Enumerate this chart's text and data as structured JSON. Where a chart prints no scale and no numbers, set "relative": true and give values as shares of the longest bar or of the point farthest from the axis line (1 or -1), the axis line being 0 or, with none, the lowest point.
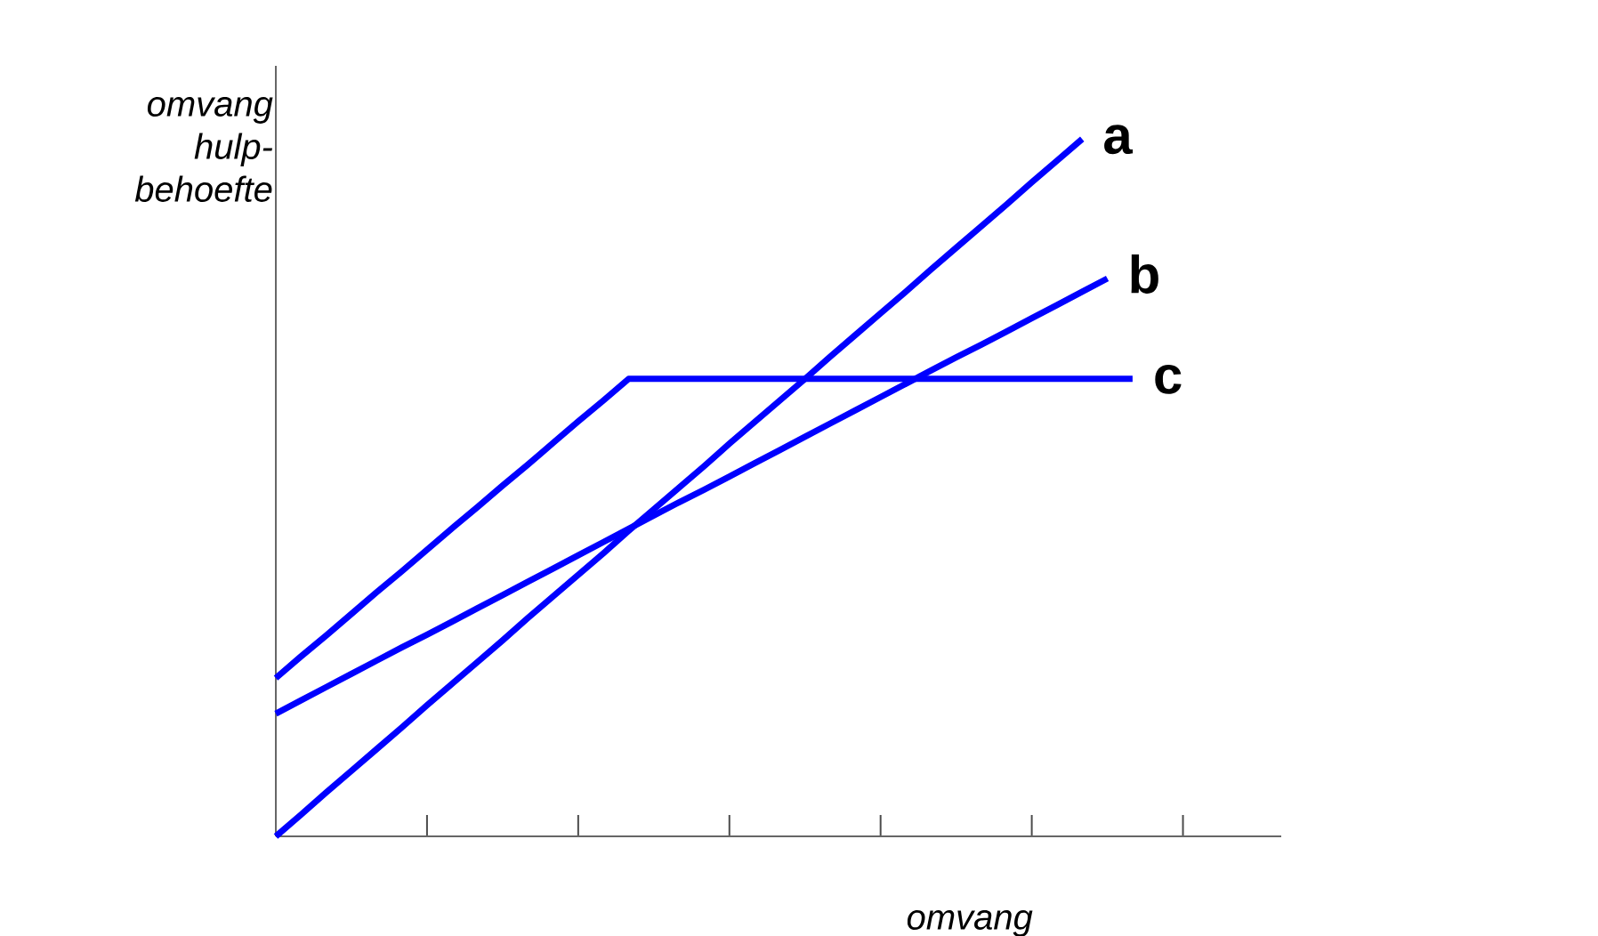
{
  "chart_data": {
    "type": "line",
    "relative": true,
    "xlabel": "omvang",
    "ylabel": "omvang hulp-behoefte",
    "categories": [
      null,
      null,
      null,
      null,
      null,
      null,
      null,
      null,
      null,
      null,
      null,
      null,
      null,
      null,
      null,
      null,
      null,
      null,
      null,
      null,
      null,
      null,
      null,
      null,
      null,
      null,
      null,
      null,
      null,
      null,
      null,
      null,
      null,
      null,
      null,
      null,
      null,
      null,
      null,
      null
    ],
    "series": [
      {
        "name": "a",
        "color": "#0000ff",
        "values": [
          0,
          0.031,
          0.063,
          0.094,
          0.125,
          0.156,
          0.188,
          0.219,
          0.25,
          0.281,
          0.313,
          0.344,
          0.375,
          0.406,
          0.438,
          0.469,
          0.5,
          0.531,
          0.563,
          0.594,
          0.625,
          0.656,
          0.688,
          0.719,
          0.75,
          0.781,
          0.813,
          0.844,
          0.875,
          0.906,
          0.938,
          0.969,
          1,
          null,
          null,
          null,
          null,
          null,
          null,
          null
        ]
      },
      {
        "name": "b",
        "color": "#0000ff",
        "values": [
          0.176,
          0.195,
          0.214,
          0.233,
          0.252,
          0.271,
          0.289,
          0.308,
          0.327,
          0.346,
          0.365,
          0.384,
          0.403,
          0.422,
          0.441,
          0.46,
          0.479,
          0.497,
          0.516,
          0.535,
          0.554,
          0.573,
          0.592,
          0.611,
          0.63,
          0.649,
          0.668,
          0.687,
          0.705,
          0.724,
          0.743,
          0.762,
          0.781,
          0.8,
          null,
          null,
          null,
          null,
          null,
          null
        ]
      },
      {
        "name": "c",
        "color": "#0000ff",
        "values": [
          0.227,
          0.258,
          0.288,
          0.319,
          0.35,
          0.38,
          0.411,
          0.442,
          0.472,
          0.503,
          0.533,
          0.564,
          0.595,
          0.625,
          0.656,
          0.656,
          0.656,
          0.656,
          0.656,
          0.656,
          0.656,
          0.656,
          0.656,
          0.656,
          0.656,
          0.656,
          0.656,
          0.656,
          0.656,
          0.656,
          0.656,
          0.656,
          0.656,
          0.656,
          0.656,
          null,
          null,
          null,
          null,
          null
        ]
      }
    ],
    "legend": false,
    "marker": "none",
    "line_style": "solid",
    "grid": false
  }
}
